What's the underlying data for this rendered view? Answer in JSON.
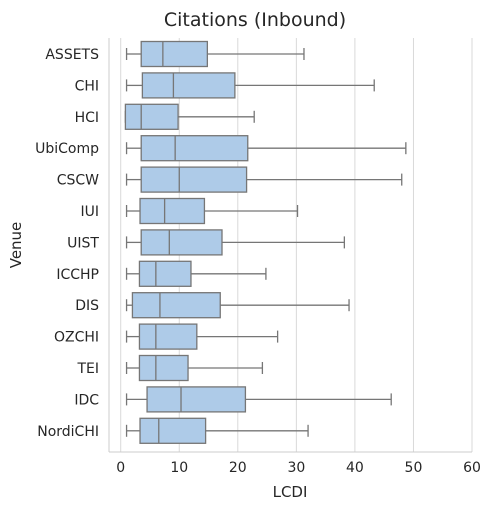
{
  "chart_data": {
    "type": "boxplot",
    "title": "Citations (Inbound)",
    "xlabel": "LCDI",
    "ylabel": "Venue",
    "xlim": [
      -2,
      60
    ],
    "xticks": [
      0,
      10,
      20,
      30,
      40,
      50,
      60
    ],
    "orientation": "horizontal",
    "grid": "vertical-lines",
    "colors": {
      "box_fill": "#aecbe8",
      "box_edge": "#767676",
      "grid": "#d9d9d9"
    },
    "categories": [
      "ASSETS",
      "CHI",
      "HCI",
      "UbiComp",
      "CSCW",
      "IUI",
      "UIST",
      "ICCHP",
      "DIS",
      "OZCHI",
      "TEI",
      "IDC",
      "NordiCHI"
    ],
    "series": [
      {
        "category": "ASSETS",
        "min": 1,
        "q1": 3.5,
        "median": 7.2,
        "q3": 14.8,
        "max": 31.3
      },
      {
        "category": "CHI",
        "min": 1,
        "q1": 3.7,
        "median": 9.0,
        "q3": 19.5,
        "max": 43.3
      },
      {
        "category": "HCI",
        "min": 0.8,
        "q1": 0.8,
        "median": 3.5,
        "q3": 9.8,
        "max": 22.8
      },
      {
        "category": "UbiComp",
        "min": 1,
        "q1": 3.5,
        "median": 9.3,
        "q3": 21.7,
        "max": 48.7
      },
      {
        "category": "CSCW",
        "min": 1,
        "q1": 3.5,
        "median": 10.0,
        "q3": 21.5,
        "max": 48.0
      },
      {
        "category": "IUI",
        "min": 1,
        "q1": 3.3,
        "median": 7.5,
        "q3": 14.3,
        "max": 30.2
      },
      {
        "category": "UIST",
        "min": 1,
        "q1": 3.5,
        "median": 8.3,
        "q3": 17.3,
        "max": 38.2
      },
      {
        "category": "ICCHP",
        "min": 1,
        "q1": 3.2,
        "median": 6.0,
        "q3": 12.0,
        "max": 24.8
      },
      {
        "category": "DIS",
        "min": 1,
        "q1": 2.0,
        "median": 6.7,
        "q3": 17.0,
        "max": 39.0
      },
      {
        "category": "OZCHI",
        "min": 1,
        "q1": 3.2,
        "median": 6.0,
        "q3": 13.0,
        "max": 26.8
      },
      {
        "category": "TEI",
        "min": 1,
        "q1": 3.2,
        "median": 6.0,
        "q3": 11.5,
        "max": 24.2
      },
      {
        "category": "IDC",
        "min": 1,
        "q1": 4.5,
        "median": 10.3,
        "q3": 21.3,
        "max": 46.2
      },
      {
        "category": "NordiCHI",
        "min": 1,
        "q1": 3.3,
        "median": 6.5,
        "q3": 14.5,
        "max": 32.0
      }
    ]
  }
}
